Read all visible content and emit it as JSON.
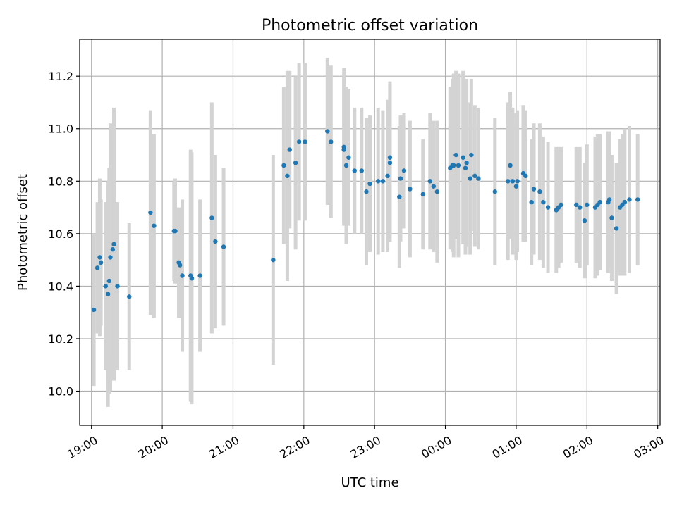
{
  "chart_data": {
    "type": "scatter",
    "title": "Photometric offset variation",
    "xlabel": "UTC time",
    "ylabel": "Photometric offset",
    "grid": true,
    "colors": {
      "point": "#1f77b4",
      "errorbar": "#d3d3d3",
      "grid": "#b0b0b0"
    },
    "xlim": [
      "18:50",
      "03:02"
    ],
    "ylim": [
      9.87,
      11.34
    ],
    "xticks": [
      "19:00",
      "20:00",
      "21:00",
      "22:00",
      "23:00",
      "00:00",
      "01:00",
      "02:00",
      "03:00"
    ],
    "yticks": [
      "10.0",
      "10.2",
      "10.4",
      "10.6",
      "10.8",
      "11.0",
      "11.2"
    ],
    "series": [
      {
        "x": [
          "19:02",
          "19:05",
          "19:07",
          "19:08",
          "19:12",
          "19:14",
          "19:15",
          "19:16",
          "19:18",
          "19:19",
          "19:22",
          "19:32",
          "19:50",
          "19:53",
          "20:10",
          "20:11",
          "20:14",
          "20:15",
          "20:17",
          "20:24",
          "20:25",
          "20:32",
          "20:42",
          "20:45",
          "20:52",
          "21:34",
          "21:43",
          "21:46",
          "21:48",
          "21:53",
          "21:56",
          "22:01",
          "22:20",
          "22:23",
          "22:34",
          "22:34",
          "22:36",
          "22:38",
          "22:43",
          "22:49",
          "22:53",
          "22:56",
          "23:03",
          "23:07",
          "23:11",
          "23:13",
          "23:13",
          "23:21",
          "23:22",
          "23:25",
          "23:30",
          "23:41",
          "23:47",
          "23:50",
          "23:53",
          "00:04",
          "00:06",
          "00:07",
          "00:09",
          "00:11",
          "00:15",
          "00:17",
          "00:18",
          "00:21",
          "00:22",
          "00:25",
          "00:28",
          "00:42",
          "00:53",
          "00:55",
          "00:57",
          "01:00",
          "01:01",
          "01:06",
          "01:08",
          "01:13",
          "01:15",
          "01:20",
          "01:23",
          "01:27",
          "01:34",
          "01:36",
          "01:38",
          "01:51",
          "01:54",
          "01:58",
          "02:00",
          "02:07",
          "02:09",
          "02:11",
          "02:18",
          "02:19",
          "02:21",
          "02:25",
          "02:28",
          "02:30",
          "02:32",
          "02:36",
          "02:43"
        ],
        "y": [
          10.31,
          10.47,
          10.51,
          10.49,
          10.4,
          10.37,
          10.42,
          10.51,
          10.54,
          10.56,
          10.4,
          10.36,
          10.68,
          10.63,
          10.61,
          10.61,
          10.49,
          10.48,
          10.44,
          10.44,
          10.43,
          10.44,
          10.66,
          10.57,
          10.55,
          10.5,
          10.86,
          10.82,
          10.92,
          10.87,
          10.95,
          10.95,
          10.99,
          10.95,
          10.92,
          10.93,
          10.86,
          10.89,
          10.84,
          10.84,
          10.76,
          10.79,
          10.8,
          10.8,
          10.82,
          10.87,
          10.89,
          10.74,
          10.81,
          10.84,
          10.77,
          10.75,
          10.8,
          10.78,
          10.76,
          10.85,
          10.86,
          10.86,
          10.9,
          10.86,
          10.89,
          10.85,
          10.87,
          10.81,
          10.9,
          10.82,
          10.81,
          10.76,
          10.8,
          10.86,
          10.8,
          10.78,
          10.8,
          10.83,
          10.82,
          10.72,
          10.77,
          10.76,
          10.72,
          10.7,
          10.69,
          10.7,
          10.71,
          10.71,
          10.7,
          10.65,
          10.71,
          10.7,
          10.71,
          10.72,
          10.72,
          10.73,
          10.66,
          10.62,
          10.7,
          10.71,
          10.72,
          10.73,
          10.73
        ],
        "yerr": [
          0.29,
          0.25,
          0.3,
          0.24,
          0.32,
          0.43,
          0.43,
          0.51,
          0.42,
          0.52,
          0.32,
          0.28,
          0.39,
          0.35,
          0.19,
          0.2,
          0.21,
          0.2,
          0.29,
          0.48,
          0.48,
          0.29,
          0.44,
          0.33,
          0.3,
          0.4,
          0.3,
          0.4,
          0.3,
          0.33,
          0.3,
          0.3,
          0.28,
          0.29,
          0.28,
          0.3,
          0.3,
          0.26,
          0.24,
          0.24,
          0.28,
          0.26,
          0.28,
          0.27,
          0.29,
          0.3,
          0.29,
          0.27,
          0.24,
          0.22,
          0.26,
          0.21,
          0.26,
          0.25,
          0.27,
          0.31,
          0.33,
          0.35,
          0.32,
          0.35,
          0.33,
          0.33,
          0.32,
          0.29,
          0.29,
          0.27,
          0.27,
          0.28,
          0.3,
          0.28,
          0.28,
          0.28,
          0.27,
          0.26,
          0.25,
          0.24,
          0.25,
          0.26,
          0.25,
          0.25,
          0.24,
          0.23,
          0.22,
          0.22,
          0.23,
          0.22,
          0.23,
          0.27,
          0.27,
          0.26,
          0.27,
          0.26,
          0.24,
          0.25,
          0.26,
          0.27,
          0.28,
          0.28,
          0.25
        ]
      }
    ]
  }
}
